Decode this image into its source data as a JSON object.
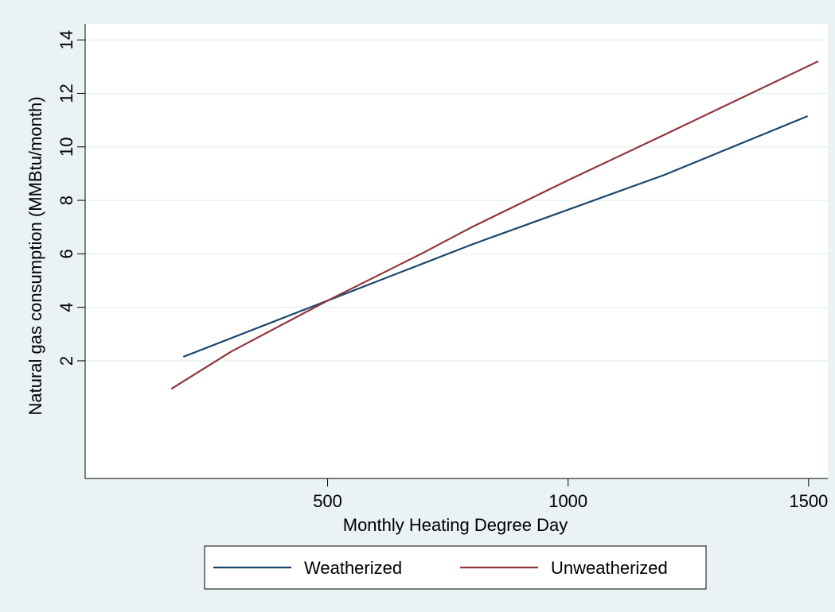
{
  "chart_data": {
    "type": "line",
    "title": "",
    "xlabel": "Monthly Heating Degree Day",
    "ylabel": "Natural gas consumption (MMBtu/month)",
    "xlim": [
      -4,
      1540
    ],
    "ylim": [
      -2.4,
      14.6
    ],
    "xticks": [
      500,
      1000,
      1500
    ],
    "xtick_labels": [
      "500",
      "1000",
      "1500"
    ],
    "yticks": [
      2,
      4,
      6,
      8,
      10,
      12,
      14
    ],
    "ytick_labels": [
      "2",
      "4",
      "6",
      "8",
      "10",
      "12",
      "14"
    ],
    "grid": true,
    "legend_position": "bottom",
    "series": [
      {
        "name": "Weatherized",
        "color": "#1a476f",
        "x": [
          200,
          500,
          800,
          1000,
          1200,
          1498
        ],
        "y": [
          2.15,
          4.25,
          6.35,
          7.65,
          8.95,
          11.15
        ]
      },
      {
        "name": "Unweatherized",
        "color": "#90353b",
        "x": [
          175,
          300,
          500,
          700,
          800,
          1000,
          1200,
          1520
        ],
        "y": [
          0.95,
          2.35,
          4.25,
          6.05,
          7.0,
          8.75,
          10.45,
          13.2
        ]
      }
    ]
  }
}
